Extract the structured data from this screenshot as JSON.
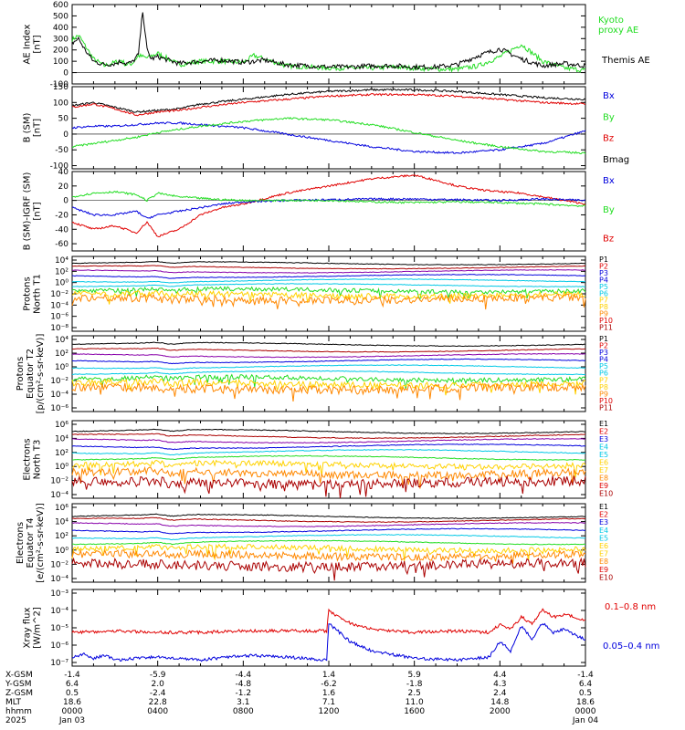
{
  "colors": {
    "black": "#000000",
    "red": "#e00000",
    "green": "#22dd22",
    "blue": "#0000dd",
    "purple": "#8800aa",
    "cyan": "#00c8e6",
    "yellow": "#ffd200",
    "orange": "#ff8800",
    "darkred": "#aa0000",
    "magenta": "#aa00aa"
  },
  "chart_data": [
    {
      "type": "line",
      "ylabel": [
        "AE Index",
        "[nT]"
      ],
      "yticks": [
        "600",
        "500",
        "400",
        "300",
        "200",
        "100",
        "0",
        "-100"
      ],
      "ylim": [
        -100,
        600
      ],
      "legend": [
        {
          "text": "Kyoto",
          "color": "green"
        },
        {
          "text": "proxy AE",
          "color": "green"
        },
        {
          "text": "Themis AE",
          "color": "black"
        }
      ],
      "series": [
        {
          "name": "Kyoto proxy AE",
          "color": "green",
          "x": [
            0,
            0.3,
            0.6,
            1,
            1.5,
            2,
            2.3,
            2.5,
            2.8,
            3.1,
            3.5,
            4,
            5,
            6,
            7,
            8,
            8.5,
            9,
            10,
            11,
            12,
            13,
            14,
            15,
            16,
            17,
            18,
            19,
            20,
            21,
            22,
            23,
            24
          ],
          "y": [
            290,
            330,
            240,
            120,
            60,
            90,
            110,
            70,
            80,
            150,
            130,
            170,
            70,
            100,
            100,
            90,
            150,
            120,
            60,
            50,
            40,
            40,
            40,
            50,
            40,
            30,
            30,
            60,
            140,
            250,
            100,
            40,
            20
          ]
        },
        {
          "name": "Themis AE",
          "color": "black",
          "x": [
            0,
            0.3,
            0.6,
            1,
            1.5,
            2,
            2.3,
            2.5,
            2.8,
            3.1,
            3.3,
            3.5,
            3.7,
            4,
            5,
            6,
            7,
            8,
            9,
            10,
            11,
            12,
            13,
            14,
            15,
            16,
            17,
            18,
            19,
            20,
            21,
            22,
            23,
            24
          ],
          "y": [
            260,
            300,
            200,
            100,
            70,
            80,
            100,
            80,
            90,
            160,
            550,
            200,
            120,
            140,
            80,
            100,
            110,
            90,
            110,
            70,
            60,
            50,
            50,
            60,
            60,
            50,
            50,
            70,
            150,
            210,
            120,
            60,
            80,
            60
          ]
        }
      ]
    },
    {
      "type": "line",
      "ylabel": [
        "B (SM)",
        "[nT]"
      ],
      "yticks": [
        "150",
        "100",
        "50",
        "0",
        "-50",
        "-100"
      ],
      "ylim": [
        -110,
        150
      ],
      "legend": [
        {
          "text": "Bx",
          "color": "blue"
        },
        {
          "text": "By",
          "color": "green"
        },
        {
          "text": "Bz",
          "color": "red"
        },
        {
          "text": "Bmag",
          "color": "black"
        }
      ],
      "series": [
        {
          "name": "Bmag",
          "color": "black",
          "x": [
            0,
            1,
            2,
            3,
            4,
            5,
            6,
            8,
            10,
            12,
            14,
            16,
            18,
            20,
            22,
            24
          ],
          "y": [
            90,
            100,
            85,
            70,
            75,
            80,
            95,
            110,
            125,
            135,
            140,
            140,
            135,
            125,
            115,
            110
          ]
        },
        {
          "name": "Bz",
          "color": "red",
          "x": [
            0,
            1,
            2,
            3,
            4,
            5,
            6,
            8,
            10,
            12,
            14,
            16,
            18,
            20,
            22,
            24
          ],
          "y": [
            85,
            95,
            80,
            60,
            70,
            75,
            85,
            100,
            110,
            120,
            125,
            125,
            120,
            110,
            100,
            95
          ]
        },
        {
          "name": "Bx",
          "color": "blue",
          "x": [
            0,
            1,
            2,
            3,
            4,
            5,
            6,
            8,
            10,
            12,
            14,
            16,
            18,
            20,
            22,
            24
          ],
          "y": [
            20,
            25,
            25,
            30,
            35,
            35,
            30,
            20,
            0,
            -20,
            -40,
            -55,
            -60,
            -50,
            -30,
            10
          ]
        },
        {
          "name": "By",
          "color": "green",
          "x": [
            0,
            1,
            2,
            3,
            4,
            5,
            6,
            8,
            10,
            12,
            14,
            16,
            18,
            20,
            22,
            24
          ],
          "y": [
            -40,
            -30,
            -20,
            -10,
            5,
            15,
            25,
            40,
            50,
            45,
            30,
            5,
            -20,
            -40,
            -55,
            -60
          ]
        }
      ]
    },
    {
      "type": "line",
      "ylabel": [
        "B (SM)-IGRF (SM)",
        "[nT]"
      ],
      "yticks": [
        "40",
        "20",
        "0",
        "-20",
        "-40",
        "-60"
      ],
      "ylim": [
        -70,
        40
      ],
      "legend": [
        {
          "text": "Bx",
          "color": "blue"
        },
        {
          "text": "By",
          "color": "green"
        },
        {
          "text": "Bz",
          "color": "red"
        }
      ],
      "series": [
        {
          "name": "Bz",
          "color": "red",
          "x": [
            0,
            1,
            2,
            3,
            3.5,
            4,
            5,
            6,
            7,
            8,
            10,
            12,
            14,
            16,
            17,
            18,
            19,
            20,
            21,
            22,
            23,
            24
          ],
          "y": [
            -30,
            -40,
            -35,
            -45,
            -30,
            -50,
            -40,
            -20,
            -10,
            -5,
            10,
            20,
            30,
            35,
            28,
            20,
            15,
            12,
            10,
            5,
            0,
            -5
          ]
        },
        {
          "name": "Bx",
          "color": "blue",
          "x": [
            0,
            1,
            2,
            3,
            3.5,
            4,
            5,
            6,
            7,
            8,
            10,
            12,
            14,
            16,
            18,
            20,
            22,
            24
          ],
          "y": [
            -10,
            -20,
            -20,
            -15,
            -25,
            -20,
            -15,
            -10,
            -5,
            -2,
            0,
            1,
            2,
            2,
            1,
            0,
            2,
            0
          ]
        },
        {
          "name": "By",
          "color": "green",
          "x": [
            0,
            1,
            2,
            3,
            3.5,
            4,
            5,
            6,
            7,
            8,
            10,
            12,
            14,
            16,
            18,
            20,
            22,
            24
          ],
          "y": [
            5,
            10,
            12,
            8,
            0,
            10,
            5,
            3,
            1,
            0,
            0,
            0,
            -2,
            -3,
            -2,
            -3,
            -5,
            -8
          ]
        }
      ]
    },
    {
      "type": "line",
      "scale": "log",
      "ylabel": [
        "Protons",
        "North T1"
      ],
      "yticks": [
        "10⁴",
        "10²",
        "10⁰",
        "10⁻²",
        "10⁻⁴",
        "10⁻⁶",
        "10⁻⁸"
      ],
      "ylim": [
        -8,
        5
      ],
      "legend": [
        {
          "text": "P1",
          "color": "black"
        },
        {
          "text": "P2",
          "color": "red"
        },
        {
          "text": "P3",
          "color": "blue"
        },
        {
          "text": "P4",
          "color": "blue"
        },
        {
          "text": "P5",
          "color": "cyan"
        },
        {
          "text": "P6",
          "color": "cyan"
        },
        {
          "text": "P7",
          "color": "yellow"
        },
        {
          "text": "P8",
          "color": "yellow"
        },
        {
          "text": "P9",
          "color": "orange"
        },
        {
          "text": "P10",
          "color": "red"
        },
        {
          "text": "P11",
          "color": "darkred"
        }
      ],
      "channels": [
        {
          "color": "black",
          "level": 3.8
        },
        {
          "color": "darkred",
          "level": 3.1
        },
        {
          "color": "purple",
          "level": 2.4
        },
        {
          "color": "blue",
          "level": 1.6
        },
        {
          "color": "cyan",
          "level": 0.8
        },
        {
          "color": "cyan",
          "level": 0.0
        },
        {
          "color": "green",
          "level": -0.9
        },
        {
          "color": "yellow",
          "level": -1.7
        },
        {
          "color": "orange",
          "level": -2.4
        }
      ]
    },
    {
      "type": "line",
      "scale": "log",
      "ylabel": [
        "Protons",
        "Equator T2",
        "[p/(cm²-s-sr-keV)]"
      ],
      "yticks": [
        "10⁴",
        "10²",
        "10⁰",
        "10⁻²",
        "10⁻⁴",
        "10⁻⁶"
      ],
      "ylim": [
        -6.5,
        5
      ],
      "legend": [
        {
          "text": "P1",
          "color": "black"
        },
        {
          "text": "P2",
          "color": "red"
        },
        {
          "text": "P3",
          "color": "blue"
        },
        {
          "text": "P4",
          "color": "blue"
        },
        {
          "text": "P5",
          "color": "cyan"
        },
        {
          "text": "P6",
          "color": "cyan"
        },
        {
          "text": "P7",
          "color": "yellow"
        },
        {
          "text": "P8",
          "color": "yellow"
        },
        {
          "text": "P9",
          "color": "orange"
        },
        {
          "text": "P10",
          "color": "red"
        },
        {
          "text": "P11",
          "color": "darkred"
        }
      ],
      "channels": [
        {
          "color": "black",
          "level": 3.7
        },
        {
          "color": "darkred",
          "level": 2.8
        },
        {
          "color": "purple",
          "level": 2.0
        },
        {
          "color": "blue",
          "level": 1.2
        },
        {
          "color": "cyan",
          "level": 0.3
        },
        {
          "color": "cyan",
          "level": -0.6
        },
        {
          "color": "green",
          "level": -1.5
        },
        {
          "color": "yellow",
          "level": -2.3
        },
        {
          "color": "orange",
          "level": -3.0
        }
      ]
    },
    {
      "type": "line",
      "scale": "log",
      "ylabel": [
        "Electrons",
        "North T3"
      ],
      "yticks": [
        "10⁶",
        "10⁴",
        "10²",
        "10⁰",
        "10⁻²",
        "10⁻⁴"
      ],
      "ylim": [
        -4,
        6
      ],
      "legend": [
        {
          "text": "E1",
          "color": "black"
        },
        {
          "text": "E2",
          "color": "red"
        },
        {
          "text": "E3",
          "color": "blue"
        },
        {
          "text": "E4",
          "color": "cyan"
        },
        {
          "text": "E5",
          "color": "cyan"
        },
        {
          "text": "E6",
          "color": "yellow"
        },
        {
          "text": "E7",
          "color": "yellow"
        },
        {
          "text": "E8",
          "color": "orange"
        },
        {
          "text": "E9",
          "color": "red"
        },
        {
          "text": "E10",
          "color": "darkred"
        }
      ],
      "channels": [
        {
          "color": "black",
          "level": 4.6
        },
        {
          "color": "darkred",
          "level": 4.0
        },
        {
          "color": "purple",
          "level": 3.4
        },
        {
          "color": "blue",
          "level": 2.7
        },
        {
          "color": "cyan",
          "level": 2.0
        },
        {
          "color": "green",
          "level": 1.2
        },
        {
          "color": "yellow",
          "level": 0.3
        },
        {
          "color": "orange",
          "level": -0.8
        },
        {
          "color": "darkred",
          "level": -2.0
        }
      ]
    },
    {
      "type": "line",
      "scale": "log",
      "ylabel": [
        "Electrons",
        "Equator T4",
        "[e/(cm²-s-sr-keV)]"
      ],
      "yticks": [
        "10⁶",
        "10⁴",
        "10²",
        "10⁰",
        "10⁻²",
        "10⁻⁴"
      ],
      "ylim": [
        -4.5,
        6
      ],
      "legend": [
        {
          "text": "E1",
          "color": "black"
        },
        {
          "text": "E2",
          "color": "red"
        },
        {
          "text": "E3",
          "color": "blue"
        },
        {
          "text": "E4",
          "color": "cyan"
        },
        {
          "text": "E5",
          "color": "cyan"
        },
        {
          "text": "E6",
          "color": "yellow"
        },
        {
          "text": "E7",
          "color": "yellow"
        },
        {
          "text": "E8",
          "color": "orange"
        },
        {
          "text": "E9",
          "color": "red"
        },
        {
          "text": "E10",
          "color": "darkred"
        }
      ],
      "channels": [
        {
          "color": "black",
          "level": 4.3
        },
        {
          "color": "darkred",
          "level": 3.8
        },
        {
          "color": "purple",
          "level": 3.2
        },
        {
          "color": "blue",
          "level": 2.4
        },
        {
          "color": "cyan",
          "level": 1.6
        },
        {
          "color": "green",
          "level": 0.8
        },
        {
          "color": "yellow",
          "level": 0.0
        },
        {
          "color": "orange",
          "level": -0.9
        },
        {
          "color": "darkred",
          "level": -2.2
        }
      ]
    },
    {
      "type": "line",
      "scale": "log",
      "ylabel": [
        "Xray flux",
        "[W/m^2]"
      ],
      "yticks": [
        "10⁻³",
        "10⁻⁴",
        "10⁻⁵",
        "10⁻⁶",
        "10⁻⁷"
      ],
      "ylim": [
        -8,
        -3
      ],
      "legend": [
        {
          "text": "0.1–0.8 nm",
          "color": "red"
        },
        {
          "text": "0.05–0.4 nm",
          "color": "blue"
        }
      ],
      "series": [
        {
          "name": "0.1-0.8 nm",
          "color": "red",
          "x": [
            0,
            2,
            4,
            6,
            8,
            10,
            11.9,
            12,
            12.5,
            13,
            14,
            16,
            18,
            19.5,
            20,
            20.5,
            21,
            21.5,
            22,
            22.5,
            23,
            24
          ],
          "y": [
            -5.8,
            -5.7,
            -5.8,
            -5.8,
            -5.7,
            -5.7,
            -5.7,
            -4.4,
            -4.8,
            -5.2,
            -5.6,
            -5.8,
            -5.7,
            -5.8,
            -5.3,
            -5.6,
            -4.8,
            -5.2,
            -4.3,
            -4.8,
            -4.6,
            -5.0
          ]
        },
        {
          "name": "0.05-0.4 nm",
          "color": "blue",
          "x": [
            0,
            0.5,
            1,
            1.5,
            2,
            4,
            6,
            8,
            10,
            11.9,
            12,
            12.5,
            13,
            14,
            16,
            18,
            19.5,
            20,
            20.5,
            21,
            21.5,
            22,
            22.5,
            23,
            24
          ],
          "y": [
            -7.5,
            -7.2,
            -7.5,
            -7.3,
            -7.6,
            -7.4,
            -7.6,
            -7.3,
            -7.4,
            -7.6,
            -5.2,
            -5.8,
            -6.4,
            -7.0,
            -7.5,
            -7.6,
            -7.4,
            -6.4,
            -7.0,
            -5.4,
            -6.2,
            -5.2,
            -5.8,
            -5.6,
            -6.3
          ]
        }
      ]
    }
  ],
  "orbit": {
    "labels": [
      "X-GSM",
      "Y-GSM",
      "Z-GSM",
      "MLT",
      "hhmm",
      "2025"
    ],
    "columns": [
      [
        "-1.4",
        "6.4",
        "0.5",
        "18.6",
        "0000",
        "Jan 03"
      ],
      [
        "-5.9",
        "2.0",
        "-2.4",
        "22.8",
        "0400",
        ""
      ],
      [
        "-4.4",
        "-4.8",
        "-1.2",
        "3.1",
        "0800",
        ""
      ],
      [
        "1.4",
        "-6.2",
        "1.6",
        "7.1",
        "1200",
        ""
      ],
      [
        "5.9",
        "-1.8",
        "2.5",
        "11.0",
        "1600",
        ""
      ],
      [
        "4.4",
        "4.3",
        "2.4",
        "14.8",
        "2000",
        ""
      ],
      [
        "-1.4",
        "6.4",
        "0.5",
        "18.6",
        "0000",
        "Jan 04"
      ]
    ]
  }
}
